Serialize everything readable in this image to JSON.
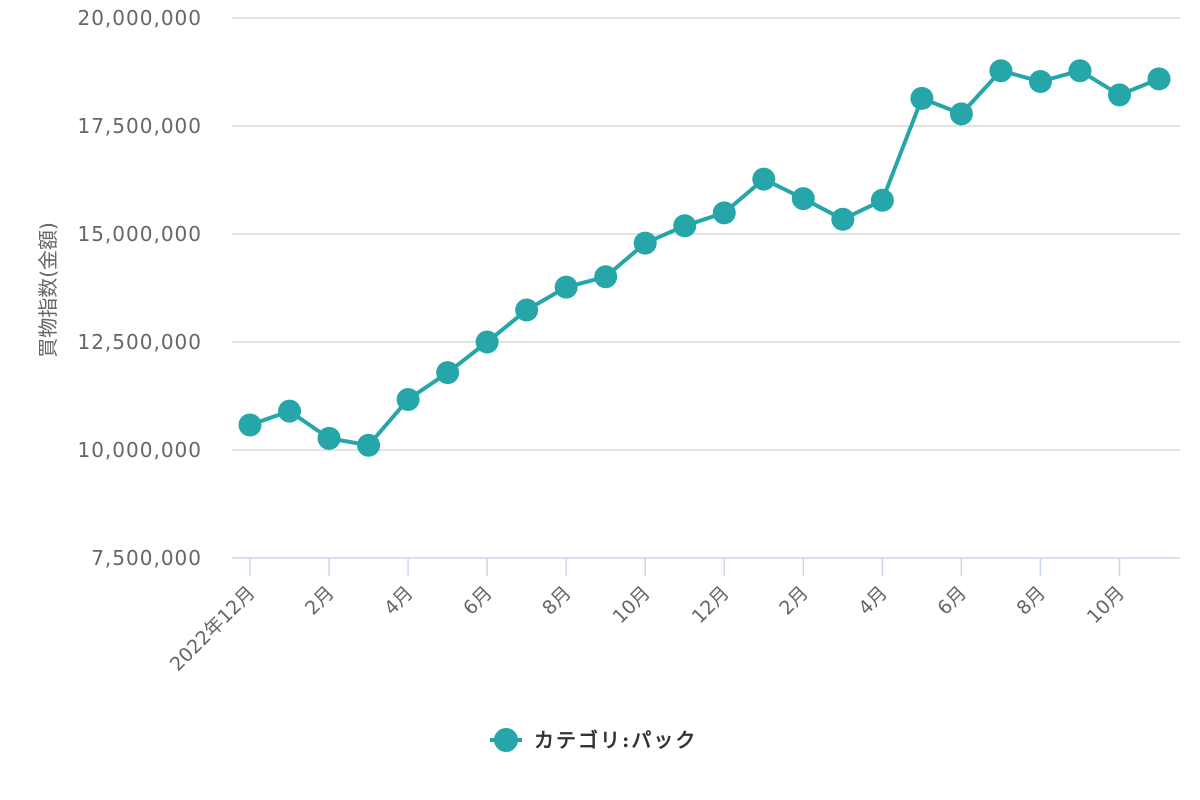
{
  "chart_data": {
    "type": "line",
    "title": "",
    "xlabel": "",
    "ylabel": "買物指数(金額)",
    "ylim": [
      7500000,
      20000000
    ],
    "y_ticks": [
      "7,500,000",
      "10,000,000",
      "12,500,000",
      "15,000,000",
      "17,500,000",
      "20,000,000"
    ],
    "y_tick_values": [
      7500000,
      10000000,
      12500000,
      15000000,
      17500000,
      20000000
    ],
    "x": [
      "2022年12月",
      "2023年1月",
      "2023年2月",
      "2023年3月",
      "2023年4月",
      "2023年5月",
      "2023年6月",
      "2023年7月",
      "2023年8月",
      "2023年9月",
      "2023年10月",
      "2023年11月",
      "2023年12月",
      "2024年1月",
      "2024年2月",
      "2024年3月",
      "2024年4月",
      "2024年5月",
      "2024年6月",
      "2024年7月",
      "2024年8月",
      "2024年9月",
      "2024年10月",
      "2024年11月"
    ],
    "x_tick_labels": [
      "2022年12月",
      "2月",
      "4月",
      "6月",
      "8月",
      "10月",
      "12月",
      "2月",
      "4月",
      "6月",
      "8月",
      "10月"
    ],
    "x_tick_indices": [
      0,
      2,
      4,
      6,
      8,
      10,
      12,
      14,
      16,
      18,
      20,
      22
    ],
    "series": [
      {
        "name": "カテゴリ:パック",
        "color": "#26a6a9",
        "values": [
          10580000,
          10900000,
          10270000,
          10110000,
          11170000,
          11790000,
          12500000,
          13240000,
          13770000,
          14010000,
          14790000,
          15190000,
          15490000,
          16270000,
          15820000,
          15340000,
          15780000,
          18140000,
          17780000,
          18780000,
          18530000,
          18780000,
          18220000,
          18590000
        ]
      }
    ],
    "grid": true,
    "legend_position": "bottom-center"
  }
}
